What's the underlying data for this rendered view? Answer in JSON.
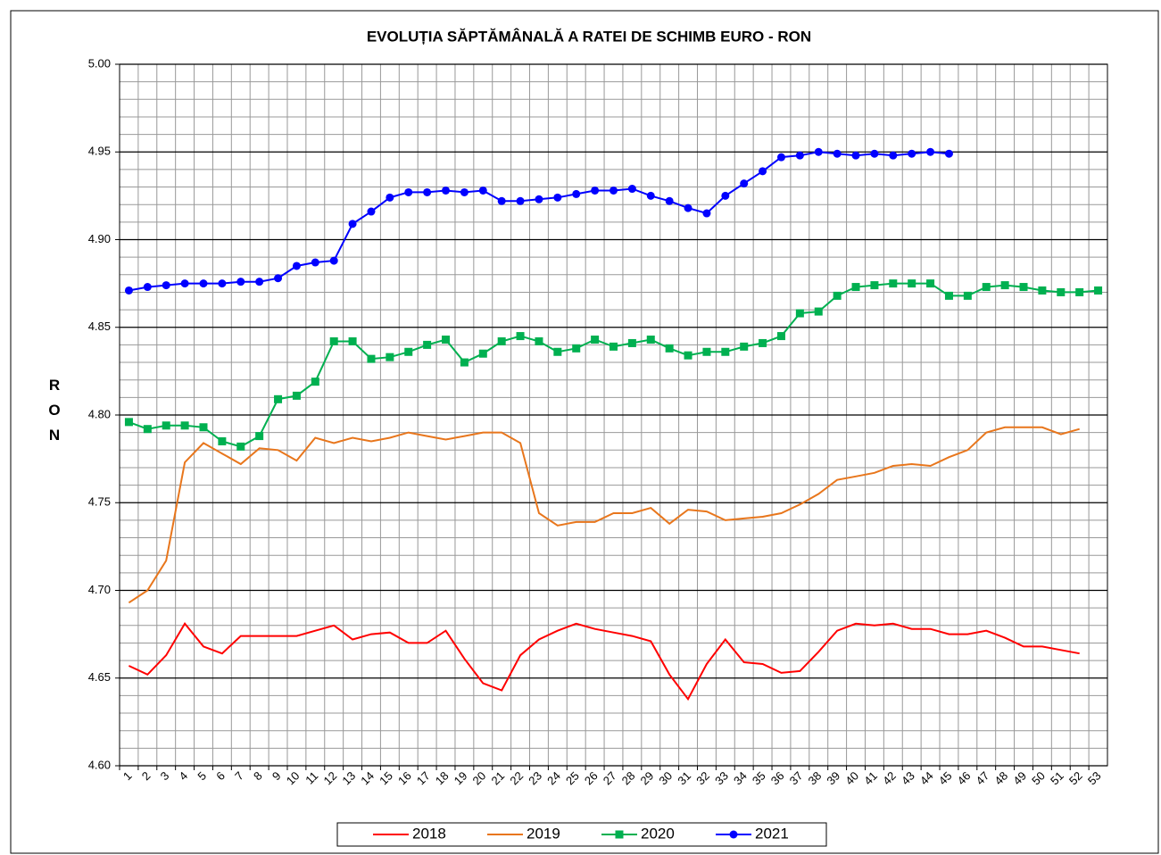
{
  "chart_data": {
    "type": "line",
    "title": "EVOLUȚIA SĂPTĂMÂNALĂ A RATEI DE SCHIMB EURO - RON",
    "y_label": "RON",
    "categories": [
      "1",
      "2",
      "3",
      "4",
      "5",
      "6",
      "7",
      "8",
      "9",
      "10",
      "11",
      "12",
      "13",
      "14",
      "15",
      "16",
      "17",
      "18",
      "19",
      "20",
      "21",
      "22",
      "23",
      "24",
      "25",
      "26",
      "27",
      "28",
      "29",
      "30",
      "31",
      "32",
      "33",
      "34",
      "35",
      "36",
      "37",
      "38",
      "39",
      "40",
      "41",
      "42",
      "43",
      "44",
      "45",
      "46",
      "47",
      "48",
      "49",
      "50",
      "51",
      "52",
      "53"
    ],
    "ylim": [
      4.6,
      5.0
    ],
    "yticks": [
      {
        "value": 4.6,
        "label": "4.60"
      },
      {
        "value": 4.65,
        "label": "4.65"
      },
      {
        "value": 4.7,
        "label": "4.70"
      },
      {
        "value": 4.75,
        "label": "4.75"
      },
      {
        "value": 4.8,
        "label": "4.80"
      },
      {
        "value": 4.85,
        "label": "4.85"
      },
      {
        "value": 4.9,
        "label": "4.90"
      },
      {
        "value": 4.95,
        "label": "4.95"
      },
      {
        "value": 5.0,
        "label": "5.00"
      }
    ],
    "grid": true,
    "series": [
      {
        "name": "2018",
        "color": "#ff0000",
        "marker": null,
        "values": [
          4.657,
          4.652,
          4.663,
          4.681,
          4.668,
          4.664,
          4.674,
          4.674,
          4.674,
          4.674,
          4.677,
          4.68,
          4.672,
          4.675,
          4.676,
          4.67,
          4.67,
          4.677,
          4.661,
          4.647,
          4.643,
          4.663,
          4.672,
          4.677,
          4.681,
          4.678,
          4.676,
          4.674,
          4.671,
          4.652,
          4.638,
          4.658,
          4.672,
          4.659,
          4.658,
          4.653,
          4.654,
          4.665,
          4.677,
          4.681,
          4.68,
          4.681,
          4.678,
          4.678,
          4.675,
          4.675,
          4.677,
          4.673,
          4.668,
          4.668,
          4.666,
          4.664,
          null
        ]
      },
      {
        "name": "2019",
        "color": "#e8761c",
        "marker": null,
        "values": [
          4.693,
          4.7,
          4.717,
          4.773,
          4.784,
          4.778,
          4.772,
          4.781,
          4.78,
          4.774,
          4.787,
          4.784,
          4.787,
          4.785,
          4.787,
          4.79,
          4.788,
          4.786,
          4.788,
          4.79,
          4.79,
          4.784,
          4.744,
          4.737,
          4.739,
          4.739,
          4.744,
          4.744,
          4.747,
          4.738,
          4.746,
          4.745,
          4.74,
          4.741,
          4.742,
          4.744,
          4.749,
          4.755,
          4.763,
          4.765,
          4.767,
          4.771,
          4.772,
          4.771,
          4.776,
          4.78,
          4.79,
          4.793,
          4.793,
          4.793,
          4.789,
          4.792,
          null
        ]
      },
      {
        "name": "2020",
        "color": "#00b050",
        "marker": "square",
        "values": [
          4.796,
          4.792,
          4.794,
          4.794,
          4.793,
          4.785,
          4.782,
          4.788,
          4.809,
          4.811,
          4.819,
          4.842,
          4.842,
          4.832,
          4.833,
          4.836,
          4.84,
          4.843,
          4.83,
          4.835,
          4.842,
          4.845,
          4.842,
          4.836,
          4.838,
          4.843,
          4.839,
          4.841,
          4.843,
          4.838,
          4.834,
          4.836,
          4.836,
          4.839,
          4.841,
          4.845,
          4.858,
          4.859,
          4.868,
          4.873,
          4.874,
          4.875,
          4.875,
          4.875,
          4.868,
          4.868,
          4.873,
          4.874,
          4.873,
          4.871,
          4.87,
          4.87,
          4.871
        ]
      },
      {
        "name": "2021",
        "color": "#0000ff",
        "marker": "circle",
        "values": [
          4.871,
          4.873,
          4.874,
          4.875,
          4.875,
          4.875,
          4.876,
          4.876,
          4.878,
          4.885,
          4.887,
          4.888,
          4.909,
          4.916,
          4.924,
          4.927,
          4.927,
          4.928,
          4.927,
          4.928,
          4.922,
          4.922,
          4.923,
          4.924,
          4.926,
          4.928,
          4.928,
          4.929,
          4.925,
          4.922,
          4.918,
          4.915,
          4.925,
          4.932,
          4.939,
          4.947,
          4.948,
          4.95,
          4.949,
          4.948,
          4.949,
          4.948,
          4.949,
          4.95,
          4.949,
          null,
          null,
          null,
          null,
          null,
          null,
          null,
          null
        ]
      }
    ]
  }
}
